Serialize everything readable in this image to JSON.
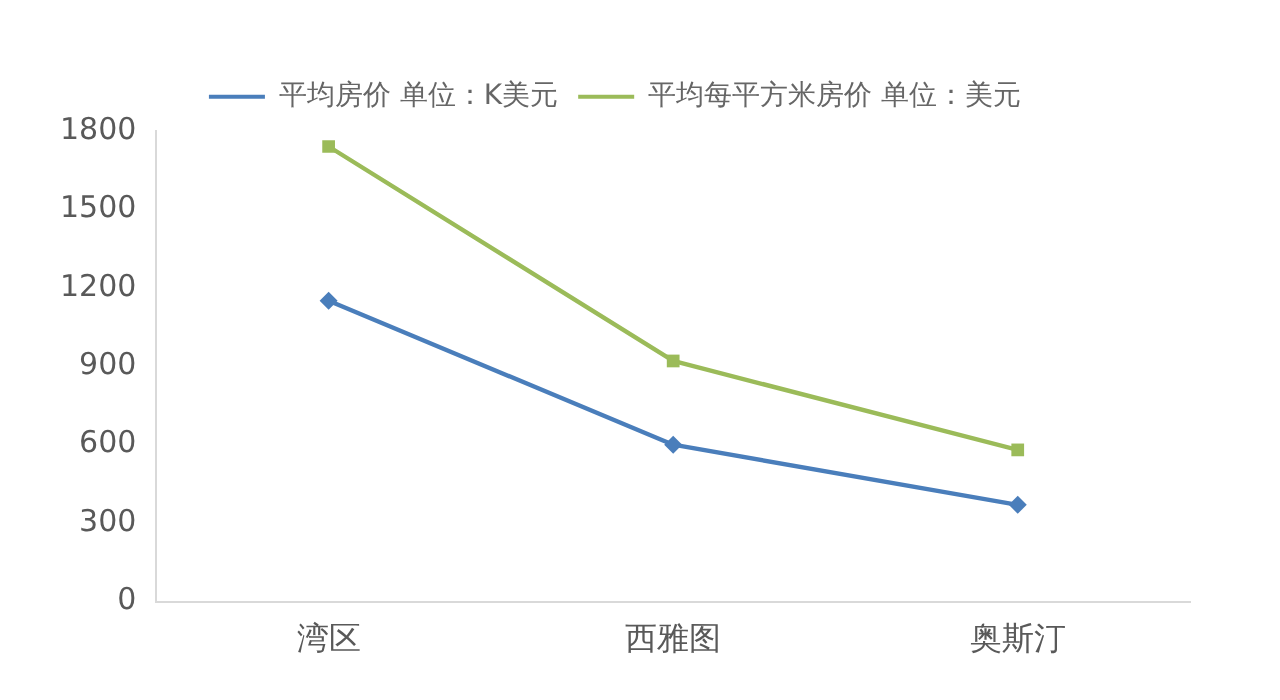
{
  "chart_data": {
    "type": "line",
    "categories": [
      "湾区",
      "西雅图",
      "奥斯汀"
    ],
    "series": [
      {
        "name": "平均房价 单位：K美元",
        "color": "#4a7ebb",
        "values": [
          1150,
          600,
          370
        ]
      },
      {
        "name": "平均每平方米房价 单位：美元",
        "color": "#9bbb59",
        "values": [
          1740,
          920,
          580
        ],
        "marker": "square"
      }
    ],
    "ylim": [
      0,
      1800
    ],
    "yticks": [
      0,
      300,
      600,
      900,
      1200,
      1500,
      1800
    ],
    "grid": false,
    "legend": "top",
    "marker": "diamond",
    "line_style": "solid"
  }
}
